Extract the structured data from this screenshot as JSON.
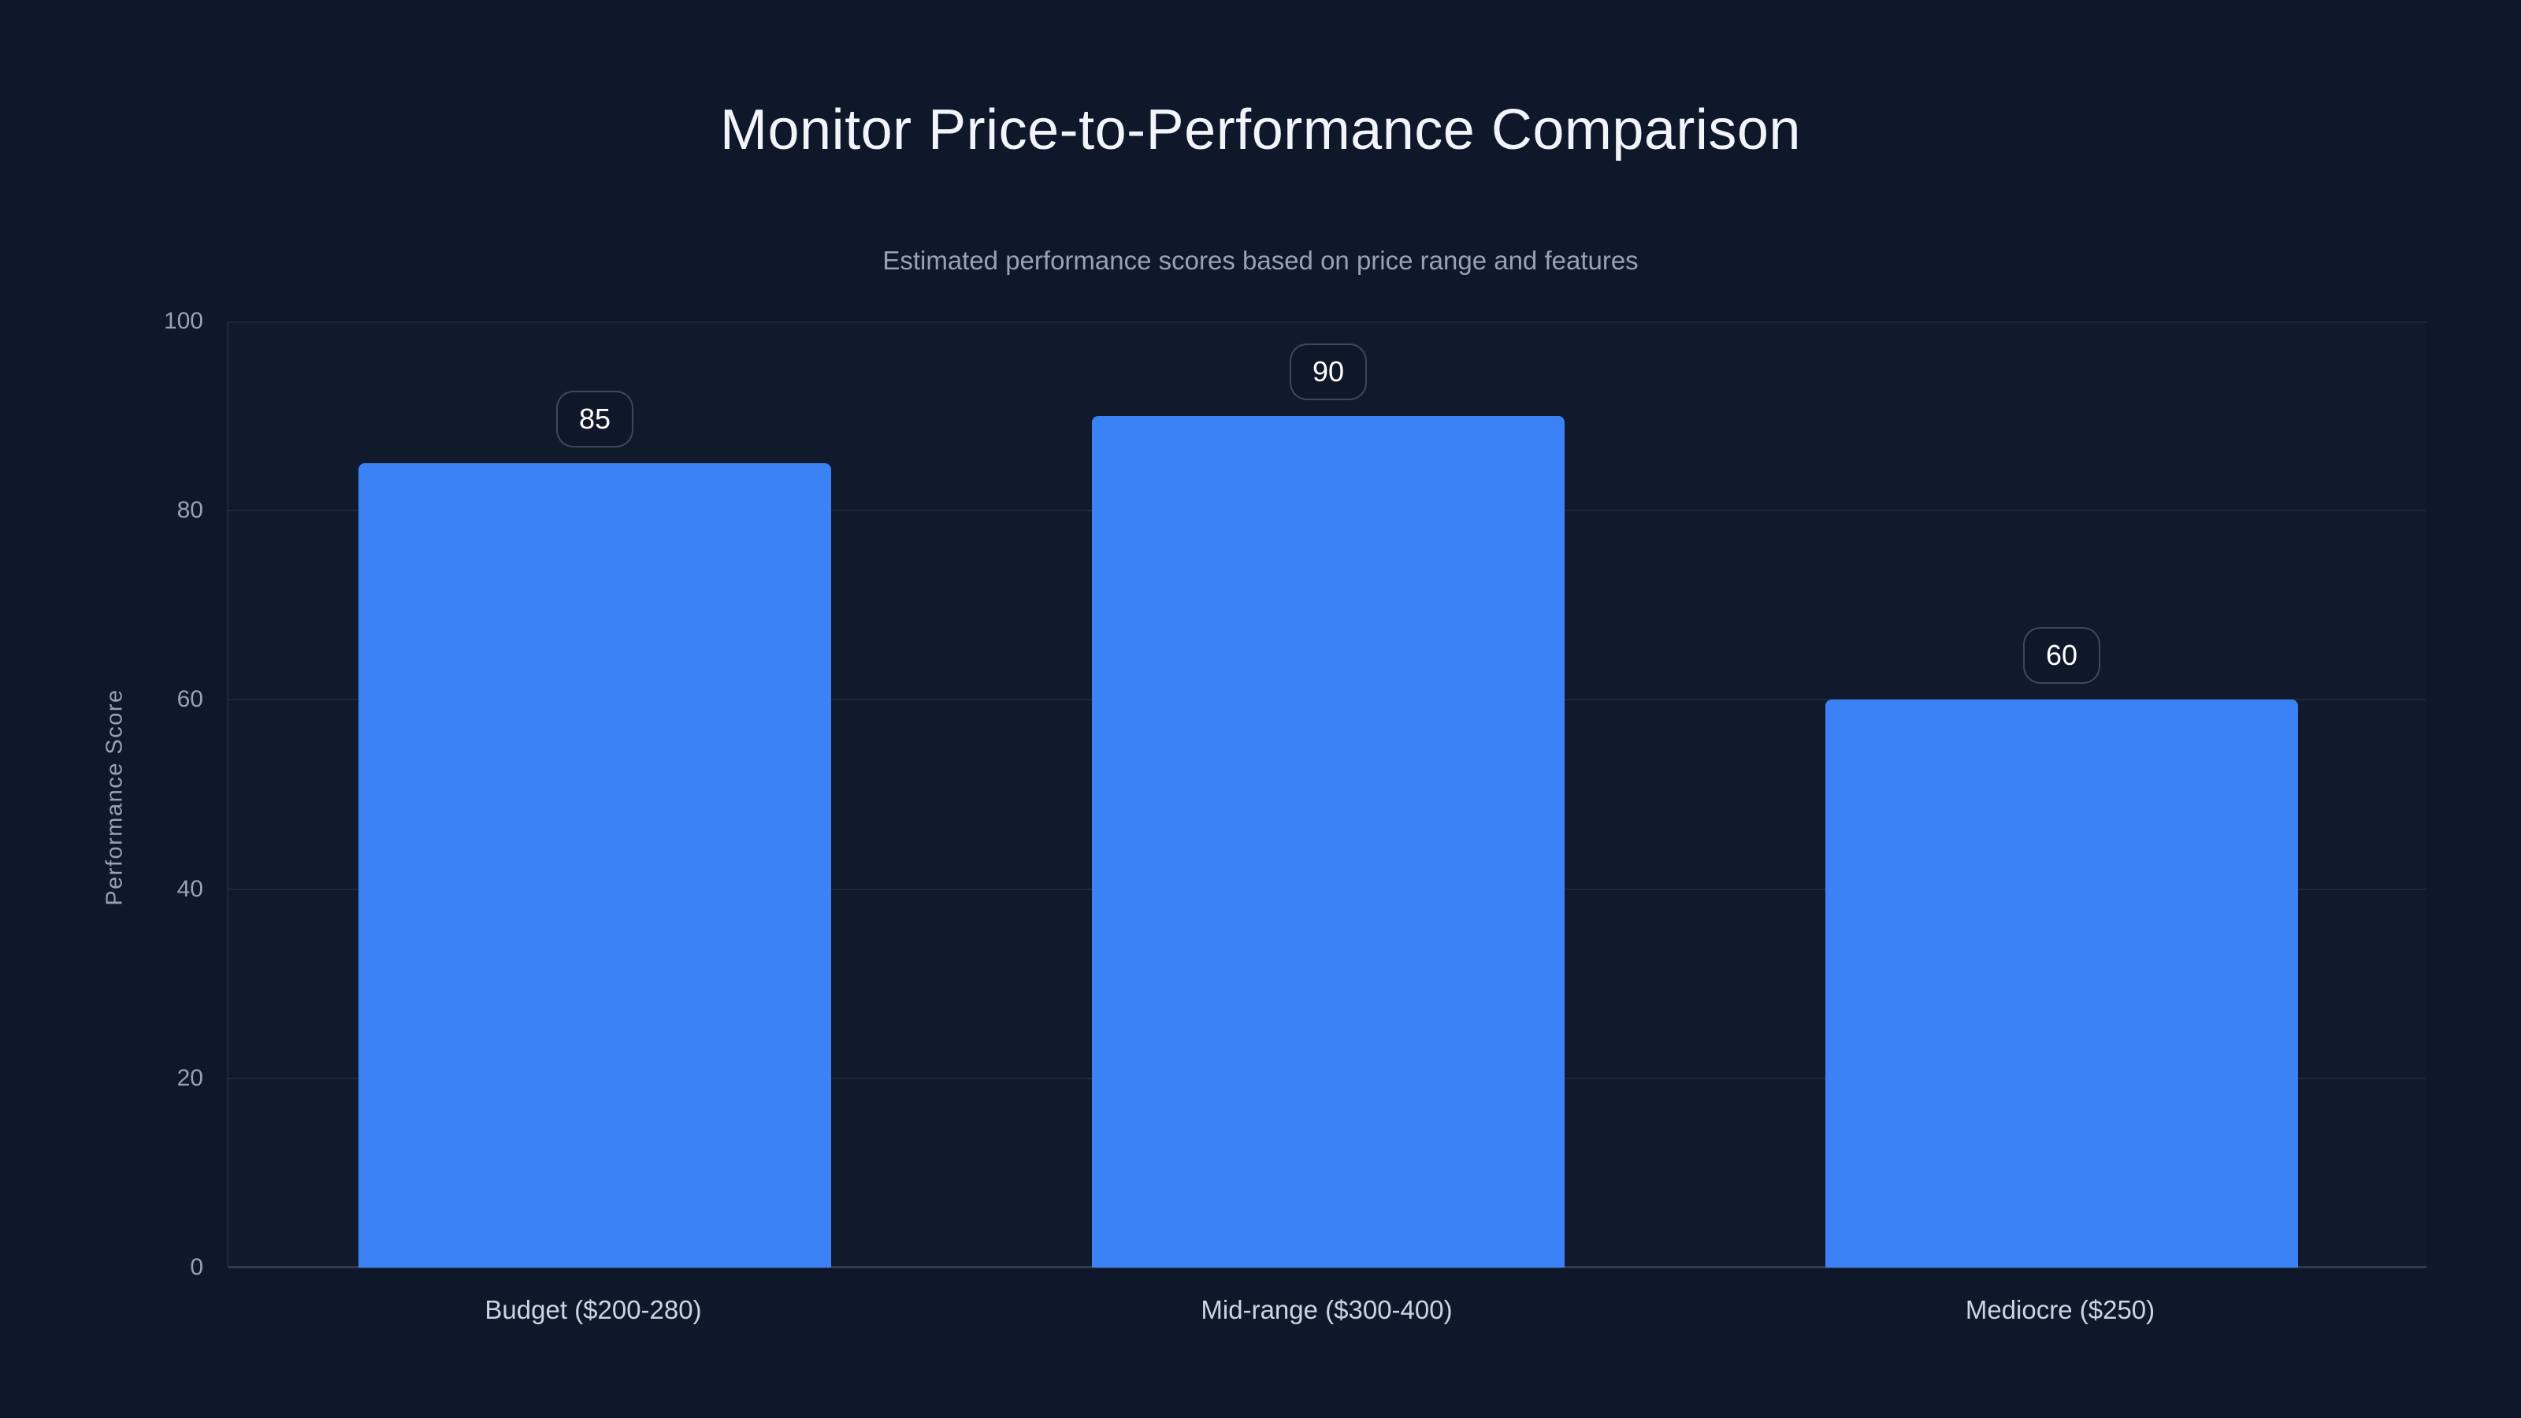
{
  "page": {
    "background_color": "#0f172a"
  },
  "chart_data": {
    "type": "bar",
    "title": "Monitor Price-to-Performance Comparison",
    "subtitle": "Estimated performance scores based on price range and features",
    "xlabel": "",
    "ylabel": "Performance Score",
    "categories": [
      "Budget ($200-280)",
      "Mid-range ($300-400)",
      "Mediocre ($250)"
    ],
    "values": [
      85,
      90,
      60
    ],
    "data_labels": [
      "85",
      "90",
      "60"
    ],
    "ylim": [
      0,
      100
    ],
    "yticks": [
      0,
      20,
      40,
      60,
      80,
      100
    ],
    "grid": "horizontal",
    "legend": "none",
    "bar_color": "#3b82f6",
    "title_color": "#f1f5f9",
    "muted_text_color": "#94a3b8",
    "category_text_color": "#cbd5e1",
    "badge_text_color": "#ffffff"
  }
}
